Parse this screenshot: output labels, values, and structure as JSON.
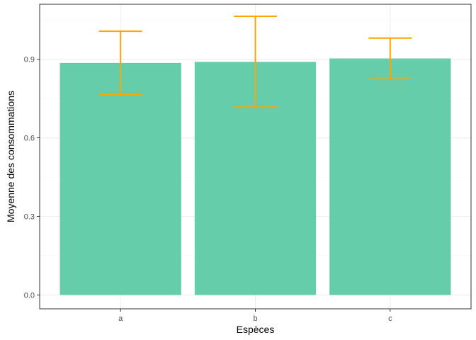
{
  "chart_data": {
    "type": "bar",
    "categories": [
      "a",
      "b",
      "c"
    ],
    "values": [
      0.886,
      0.89,
      0.903
    ],
    "error_low": [
      0.765,
      0.717,
      0.824
    ],
    "error_high": [
      1.007,
      1.064,
      0.981
    ],
    "xlabel": "Espèces",
    "ylabel": "Moyenne des consommations",
    "ylim": [
      -0.053,
      1.11
    ],
    "yticks": [
      0.0,
      0.3,
      0.6,
      0.9
    ],
    "ytick_labels": [
      "0.0",
      "0.3",
      "0.6",
      "0.9"
    ],
    "grid": true,
    "legend": "none",
    "colors": {
      "bar": "#66CDAA",
      "error_bar": "#FFA500",
      "grid_major": "#ebebeb",
      "grid_minor": "#f5f5f5",
      "panel_border": "#333333"
    }
  }
}
